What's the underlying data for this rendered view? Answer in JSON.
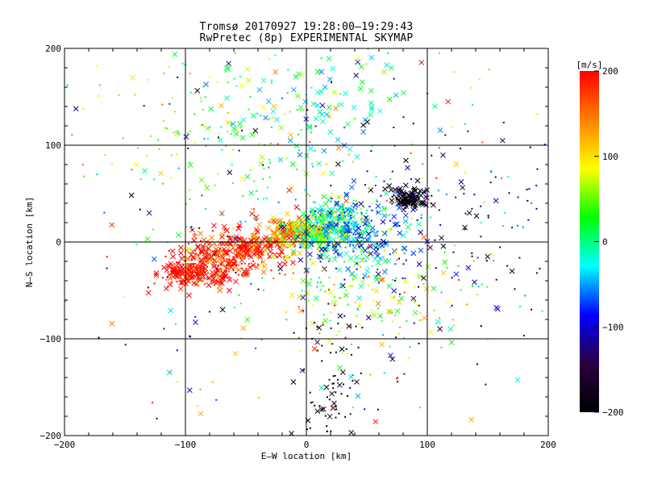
{
  "chart_data": {
    "type": "scatter",
    "title": "Tromsø 20170927 19:28:00–19:29:43",
    "subtitle": "RwPretec (8p) EXPERIMENTAL SKYMAP",
    "xlabel": "E–W location [km]",
    "ylabel": "N–S location [km]",
    "xlim": [
      -200,
      200
    ],
    "ylim": [
      -200,
      200
    ],
    "x_ticks": [
      "−200",
      "−100",
      "0",
      "100",
      "200"
    ],
    "y_ticks": [
      "−200",
      "−100",
      "0",
      "100",
      "200"
    ],
    "grid": true,
    "grid_lines": [
      -100,
      0,
      100
    ],
    "markers": [
      "x",
      "dot"
    ],
    "colorbar": {
      "label": "[m/s]",
      "range": [
        -200,
        200
      ],
      "ticks": [
        "200",
        "100",
        "0",
        "−100",
        "−200"
      ],
      "colormap": [
        "#000000",
        "#2a0040",
        "#0000ff",
        "#00ffff",
        "#00ff00",
        "#ffff00",
        "#ff8000",
        "#ff0000"
      ]
    },
    "clusters": [
      {
        "region": "west-southwest",
        "center": [
          -95,
          -30
        ],
        "spread": [
          15,
          9
        ],
        "velocity": 200,
        "count": 180,
        "marker": "x"
      },
      {
        "region": "west-southwest",
        "center": [
          -70,
          -20
        ],
        "spread": [
          22,
          12
        ],
        "velocity": 195,
        "count": 160,
        "marker": "dot"
      },
      {
        "region": "west",
        "center": [
          -45,
          -5
        ],
        "spread": [
          20,
          12
        ],
        "velocity": 190,
        "count": 200,
        "marker": "x"
      },
      {
        "region": "center-west",
        "center": [
          -15,
          10
        ],
        "spread": [
          10,
          8
        ],
        "velocity": 120,
        "count": 120,
        "marker": "x"
      },
      {
        "region": "center",
        "center": [
          10,
          12
        ],
        "spread": [
          12,
          10
        ],
        "velocity": 40,
        "count": 170,
        "marker": "x"
      },
      {
        "region": "center-east",
        "center": [
          30,
          20
        ],
        "spread": [
          18,
          14
        ],
        "velocity": -30,
        "count": 220,
        "marker": "dot"
      },
      {
        "region": "east",
        "center": [
          40,
          0
        ],
        "spread": [
          25,
          20
        ],
        "velocity": -60,
        "count": 160,
        "marker": "x"
      },
      {
        "region": "east-north",
        "center": [
          85,
          45
        ],
        "spread": [
          8,
          6
        ],
        "velocity": -200,
        "count": 110,
        "marker": "x"
      },
      {
        "region": "northwest",
        "center": [
          -60,
          120
        ],
        "spread": [
          50,
          50
        ],
        "velocity": 40,
        "count": 180,
        "marker": "dot"
      },
      {
        "region": "north",
        "center": [
          20,
          140
        ],
        "spread": [
          40,
          40
        ],
        "velocity": -20,
        "count": 90,
        "marker": "x"
      },
      {
        "region": "south",
        "center": [
          20,
          -150
        ],
        "spread": [
          15,
          45
        ],
        "velocity": -200,
        "count": 90,
        "marker": "dot"
      },
      {
        "region": "southeast",
        "center": [
          50,
          -50
        ],
        "spread": [
          40,
          30
        ],
        "velocity": 60,
        "count": 180,
        "marker": "dot"
      },
      {
        "region": "east-far",
        "center": [
          130,
          20
        ],
        "spread": [
          45,
          60
        ],
        "velocity": -140,
        "count": 90,
        "marker": "dot"
      },
      {
        "region": "scatter",
        "center": [
          0,
          0
        ],
        "spread": [
          110,
          110
        ],
        "velocity": 0,
        "count": 350,
        "marker": "dot"
      }
    ]
  }
}
